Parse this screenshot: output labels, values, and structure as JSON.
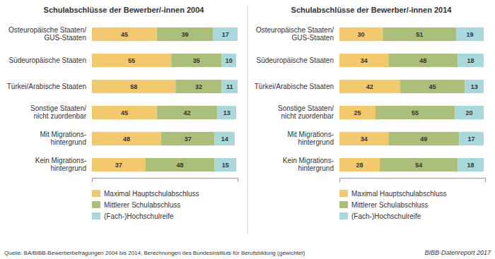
{
  "chart_data": [
    {
      "type": "bar",
      "title": "Schulabschlüsse der Bewerber/-innen 2004",
      "orientation": "horizontal",
      "stacked": true,
      "data_labels": true,
      "grid": false,
      "legend": "bottom left",
      "tick_labels": "y",
      "categories": [
        "Osteuropäische Staaten/\nGUS-Staaten",
        "Südeuropäische Staaten",
        "Türkei/Arabische Staaten",
        "Sonstige Staaten/\nnicht zuordenbar",
        "Mit Migrations-\nhintergrund",
        "Kein Migrations-\nhintergrund"
      ],
      "series": [
        {
          "name": "Maximal Hauptschulabschluss",
          "color": "#F2C96E",
          "values": [
            45,
            55,
            58,
            45,
            48,
            37
          ]
        },
        {
          "name": "Mittlerer Schulabschluss",
          "color": "#ABBE7A",
          "values": [
            39,
            35,
            32,
            42,
            37,
            48
          ]
        },
        {
          "name": "(Fach-)Hochschulreife",
          "color": "#A8D8DC",
          "values": [
            17,
            10,
            11,
            13,
            14,
            15
          ]
        }
      ],
      "xlim": [
        0,
        101
      ],
      "xticks": [],
      "annotations": [
        "Quelle: BA/BIBB-Bewerberbefragungen 2004 bis 2014, Berechnungen des Bundesinstituts für Berufsbildung (gewichtet)",
        "BIBB-Datenreport 2017"
      ]
    },
    {
      "type": "bar",
      "title": "Schulabschlüsse der Bewerber/-innen 2014",
      "orientation": "horizontal",
      "stacked": true,
      "data_labels": true,
      "grid": false,
      "legend": "bottom left",
      "tick_labels": "y",
      "categories": [
        "Osteuropäische Staaten/\nGUS-Staaten",
        "Südeuropäische Staaten",
        "Türkei/Arabische Staaten",
        "Sonstige Staaten/\nnicht zuordenbar",
        "Mit Migrations-\nhintergrund",
        "Kein Migrations-\nhintergrund"
      ],
      "series": [
        {
          "name": "Maximal Hauptschulabschluss",
          "color": "#F2C96E",
          "values": [
            30,
            34,
            42,
            25,
            34,
            28
          ]
        },
        {
          "name": "Mittlerer Schulabschluss",
          "color": "#ABBE7A",
          "values": [
            51,
            48,
            45,
            55,
            49,
            54
          ]
        },
        {
          "name": "(Fach-)Hochschulreife",
          "color": "#A8D8DC",
          "values": [
            19,
            18,
            13,
            20,
            17,
            18
          ]
        }
      ],
      "xlim": [
        0,
        101
      ],
      "xticks": []
    }
  ]
}
